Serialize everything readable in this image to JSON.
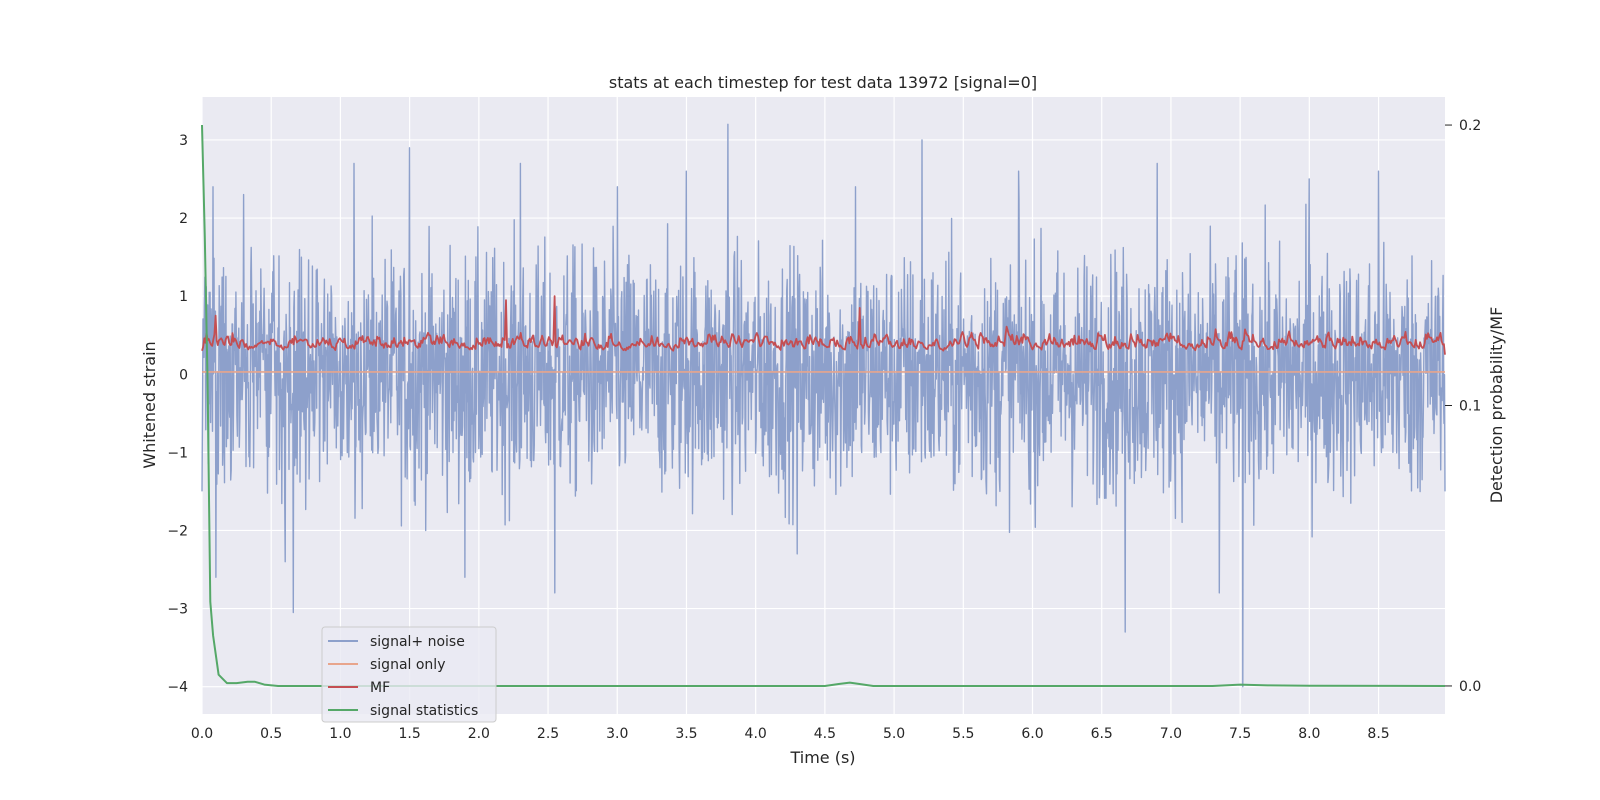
{
  "chart_data": {
    "type": "line",
    "title": "stats at each timestep for test data 13972 [signal=0]",
    "xlabel": "Time (s)",
    "ylabel": "Whitened strain",
    "y2label": "Detection probability/MF",
    "xlim": [
      0.0,
      8.98
    ],
    "ylim": [
      -4.35,
      3.55
    ],
    "y2lim": [
      -0.01,
      0.21
    ],
    "xticks": [
      "0.0",
      "0.5",
      "1.0",
      "1.5",
      "2.0",
      "2.5",
      "3.0",
      "3.5",
      "4.0",
      "4.5",
      "5.0",
      "5.5",
      "6.0",
      "6.5",
      "7.0",
      "7.5",
      "8.0",
      "8.5"
    ],
    "yticks": [
      "3",
      "2",
      "1",
      "0",
      "−1",
      "−2",
      "−3",
      "−4"
    ],
    "y2ticks": [
      "0.2",
      "0.1",
      "0.0"
    ],
    "grid": true,
    "legend_position": "lower-left",
    "series": [
      {
        "name": "signal+ noise",
        "color": "#8da0cb",
        "axis": "left",
        "style": "dense noise, amplitude ~1 sigma, peaks to about +3.2 and -4.0 (spike at t=7.52)",
        "x": [
          0.0,
          0.08,
          0.1,
          0.3,
          0.6,
          0.66,
          1.1,
          1.5,
          1.9,
          2.3,
          2.55,
          3.0,
          3.5,
          3.8,
          4.3,
          4.72,
          5.2,
          5.9,
          6.67,
          6.9,
          7.35,
          7.52,
          8.0,
          8.5,
          8.98
        ],
        "values": [
          -1.5,
          2.4,
          -2.6,
          2.3,
          -2.4,
          -3.05,
          2.7,
          2.9,
          -2.6,
          2.7,
          -2.8,
          2.4,
          2.6,
          3.2,
          -2.3,
          2.4,
          3.0,
          2.6,
          -3.3,
          2.7,
          -2.8,
          -4.0,
          2.5,
          2.6,
          -1.5
        ]
      },
      {
        "name": "signal only",
        "color": "#e8a58c",
        "axis": "left",
        "x": [
          0.0,
          8.98
        ],
        "values": [
          0.03,
          0.03
        ]
      },
      {
        "name": "MF",
        "color": "#c44e52",
        "axis": "left",
        "style": "noisy trace between about 0.0 and 1.0",
        "x": [
          0.0,
          0.1,
          2.2,
          2.55,
          4.75,
          8.98
        ],
        "values": [
          0.3,
          0.75,
          0.95,
          1.0,
          0.85,
          0.25
        ]
      },
      {
        "name": "signal statistics",
        "color": "#55a868",
        "axis": "right",
        "x": [
          0.0,
          0.02,
          0.04,
          0.06,
          0.08,
          0.12,
          0.18,
          0.25,
          0.33,
          0.38,
          0.45,
          0.55,
          0.7,
          1.5,
          3.0,
          4.5,
          4.6,
          4.68,
          4.75,
          4.85,
          5.0,
          6.0,
          7.3,
          7.5,
          7.7,
          8.0,
          8.98
        ],
        "values": [
          0.2,
          0.16,
          0.11,
          0.03,
          0.018,
          0.004,
          0.001,
          0.001,
          0.0015,
          0.0015,
          0.0005,
          0.0,
          0.0,
          0.0,
          0.0,
          0.0,
          0.0007,
          0.0012,
          0.0007,
          0.0,
          0.0,
          0.0,
          0.0,
          0.0005,
          0.0002,
          0.0001,
          0.0
        ]
      }
    ]
  }
}
